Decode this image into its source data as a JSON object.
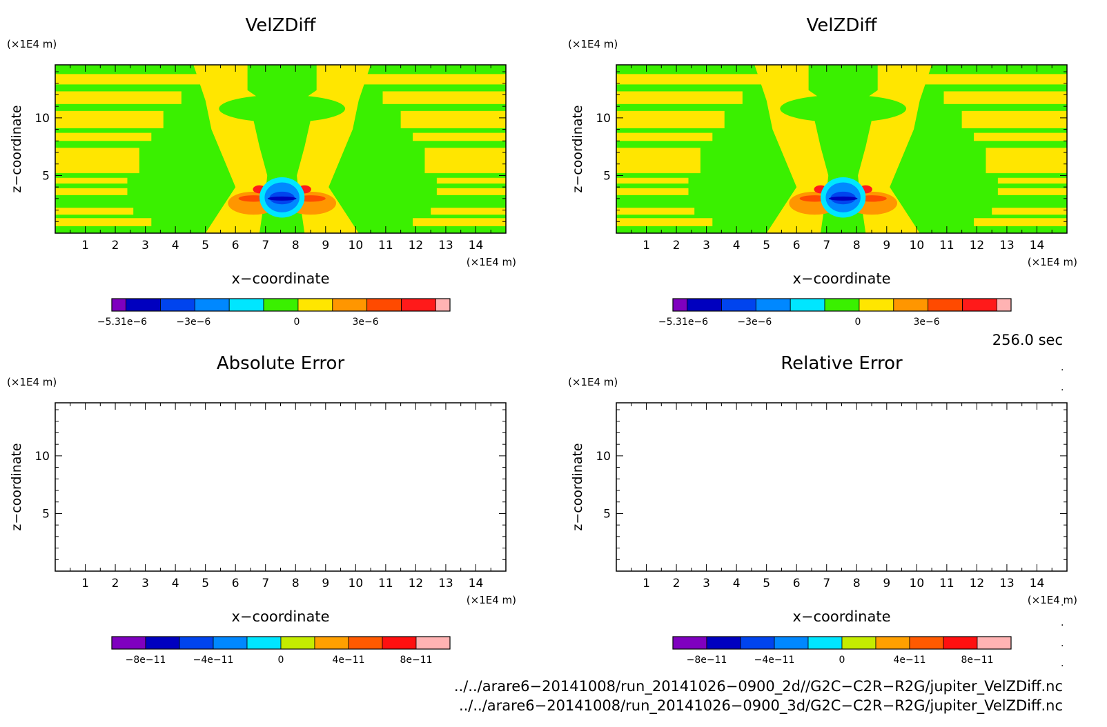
{
  "colors": {
    "main": [
      "#7f00bf",
      "#0000bf",
      "#0044ee",
      "#0088ff",
      "#00e6ff",
      "#3af000",
      "#ffe600",
      "#ff9600",
      "#ff4a00",
      "#ff1a1a",
      "#ffb3b3"
    ],
    "error": [
      "#7f00bf",
      "#0000bf",
      "#0044ee",
      "#0088ff",
      "#00e6ff",
      "#c4ec00",
      "#ffa000",
      "#ff5a00",
      "#ff1010",
      "#ffb3b3"
    ],
    "frame": "#000000",
    "background": "#ffffff"
  },
  "panels": [
    {
      "title": "VelZDiff",
      "xlabel": "x−coordinate",
      "ylabel": "z−coordinate",
      "x_unit": "(×1E4 m)",
      "y_unit": "(×1E4 m)",
      "x_ticks": [
        "1",
        "2",
        "3",
        "4",
        "5",
        "6",
        "7",
        "8",
        "9",
        "10",
        "11",
        "12",
        "13",
        "14"
      ],
      "y_ticks": [
        "5",
        "10"
      ],
      "colorbar_labels": [
        "−5.31e−6",
        "−3e−6",
        "0",
        "3e−6"
      ],
      "filled": true
    },
    {
      "title": "VelZDiff",
      "xlabel": "x−coordinate",
      "ylabel": "z−coordinate",
      "x_unit": "(×1E4 m)",
      "y_unit": "(×1E4 m)",
      "x_ticks": [
        "1",
        "2",
        "3",
        "4",
        "5",
        "6",
        "7",
        "8",
        "9",
        "10",
        "11",
        "12",
        "13",
        "14"
      ],
      "y_ticks": [
        "5",
        "10"
      ],
      "colorbar_labels": [
        "−5.31e−6",
        "−3e−6",
        "0",
        "3e−6"
      ],
      "filled": true
    },
    {
      "title": "Absolute Error",
      "xlabel": "x−coordinate",
      "ylabel": "z−coordinate",
      "x_unit": "(×1E4 m)",
      "y_unit": "(×1E4 m)",
      "x_ticks": [
        "1",
        "2",
        "3",
        "4",
        "5",
        "6",
        "7",
        "8",
        "9",
        "10",
        "11",
        "12",
        "13",
        "14"
      ],
      "y_ticks": [
        "5",
        "10"
      ],
      "colorbar_labels": [
        "−8e−11",
        "−4e−11",
        "0",
        "4e−11",
        "8e−11"
      ],
      "filled": false
    },
    {
      "title": "Relative Error",
      "xlabel": "x−coordinate",
      "ylabel": "z−coordinate",
      "x_unit": "(×1E4 m)",
      "y_unit": "(×1E4 m)",
      "x_ticks": [
        "1",
        "2",
        "3",
        "4",
        "5",
        "6",
        "7",
        "8",
        "9",
        "10",
        "11",
        "12",
        "13",
        "14"
      ],
      "y_ticks": [
        "5",
        "10"
      ],
      "colorbar_labels": [
        "−8e−11",
        "−4e−11",
        "0",
        "4e−11",
        "8e−11"
      ],
      "filled": false
    }
  ],
  "time_label": "256.0 sec",
  "file_paths": [
    "../../arare6−20141008/run_20141026−0900_2d//G2C−C2R−R2G/jupiter_VelZDiff.nc",
    "../../arare6−20141008/run_20141026−0900_3d/G2C−C2R−R2G/jupiter_VelZDiff.nc"
  ],
  "chart_data": [
    {
      "type": "heatmap",
      "title": "VelZDiff",
      "xlabel": "x−coordinate",
      "ylabel": "z−coordinate",
      "x_range": [
        0,
        15
      ],
      "y_range": [
        0,
        14.6
      ],
      "colorbar": {
        "min": -5.31e-06,
        "labels": [
          "−5.31e−6",
          "−3e−6",
          "0",
          "3e−6"
        ],
        "levels": 11
      },
      "features": [
        {
          "kind": "negative-core",
          "x": 7.55,
          "z": 3.0,
          "min": -5.31e-06
        },
        {
          "kind": "positive-lobe",
          "x": 6.6,
          "z": 2.8,
          "approx": 3e-06
        },
        {
          "kind": "positive-lobe",
          "x": 8.6,
          "z": 2.8,
          "approx": 3e-06
        }
      ]
    },
    {
      "type": "heatmap",
      "title": "VelZDiff",
      "xlabel": "x−coordinate",
      "ylabel": "z−coordinate",
      "x_range": [
        0,
        15
      ],
      "y_range": [
        0,
        14.6
      ],
      "colorbar": {
        "min": -5.31e-06,
        "labels": [
          "−5.31e−6",
          "−3e−6",
          "0",
          "3e−6"
        ],
        "levels": 11
      },
      "features": [
        {
          "kind": "negative-core",
          "x": 7.55,
          "z": 3.0,
          "min": -5.31e-06
        },
        {
          "kind": "positive-lobe",
          "x": 6.6,
          "z": 2.8,
          "approx": 3e-06
        },
        {
          "kind": "positive-lobe",
          "x": 8.6,
          "z": 2.8,
          "approx": 3e-06
        }
      ]
    },
    {
      "type": "heatmap",
      "title": "Absolute Error",
      "xlabel": "x−coordinate",
      "ylabel": "z−coordinate",
      "x_range": [
        0,
        15
      ],
      "y_range": [
        0,
        14.6
      ],
      "colorbar": {
        "labels": [
          "−8e−11",
          "−4e−11",
          "0",
          "4e−11",
          "8e−11"
        ],
        "levels": 10
      },
      "values": "empty"
    },
    {
      "type": "heatmap",
      "title": "Relative Error",
      "xlabel": "x−coordinate",
      "ylabel": "z−coordinate",
      "x_range": [
        0,
        15
      ],
      "y_range": [
        0,
        14.6
      ],
      "colorbar": {
        "labels": [
          "−8e−11",
          "−4e−11",
          "0",
          "4e−11",
          "8e−11"
        ],
        "levels": 10
      },
      "values": "empty"
    }
  ]
}
